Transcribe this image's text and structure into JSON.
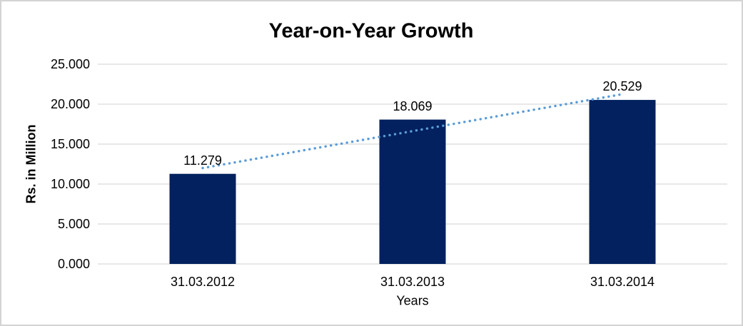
{
  "chart_data": {
    "type": "bar",
    "title": "Year-on-Year Growth",
    "xlabel": "Years",
    "ylabel": "Rs. in Million",
    "categories": [
      "31.03.2012",
      "31.03.2013",
      "31.03.2014"
    ],
    "values": [
      11279,
      18069,
      20529
    ],
    "data_labels": [
      "11.279",
      "18.069",
      "20.529"
    ],
    "ylim": [
      0,
      25000
    ],
    "ytick_step": 5000,
    "ytick_labels": [
      "0.000",
      "5.000",
      "10.000",
      "15.000",
      "20.000",
      "25.000"
    ],
    "grid": "horizontal",
    "legend": "none",
    "colors": {
      "bar": "#02215E",
      "trendline": "#5B9BD5",
      "gridline": "#D9D9D9",
      "frame_border": "#D3D3D3",
      "text": "#000000"
    },
    "trendline": {
      "type": "linear",
      "style": "dotted",
      "start_value": 12000,
      "end_value": 21250
    }
  }
}
